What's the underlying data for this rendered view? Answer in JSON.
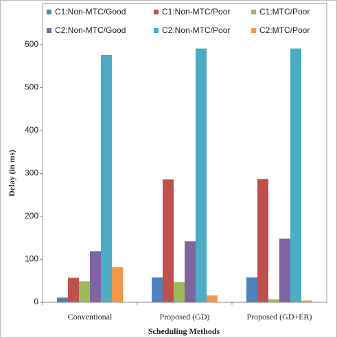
{
  "chart_data": {
    "type": "bar",
    "x_label": "Scheduling Methods",
    "y_label": "Delay (in ms)",
    "categories": [
      "Conventional",
      "Proposed (GD)",
      "Proposed (GD+ER)"
    ],
    "series": [
      {
        "name": "C1:Non-MTC/Good",
        "color": "#4f81bd",
        "values": [
          11,
          58,
          58
        ]
      },
      {
        "name": "C1:Non-MTC/Poor",
        "color": "#c0504d",
        "values": [
          57,
          286,
          287
        ]
      },
      {
        "name": "C1:MTC/Poor",
        "color": "#9bbb59",
        "values": [
          49,
          47,
          7
        ]
      },
      {
        "name": "C2:Non-MTC/Good",
        "color": "#8064a2",
        "values": [
          119,
          142,
          148
        ]
      },
      {
        "name": "C2:Non-MTC/Poor",
        "color": "#4bacc6",
        "values": [
          576,
          591,
          591
        ]
      },
      {
        "name": "C2:MTC/Poor",
        "color": "#f79646",
        "values": [
          82,
          16,
          4
        ]
      }
    ],
    "ylim": [
      0,
      600
    ],
    "yticks": [
      0,
      100,
      200,
      300,
      400,
      500,
      600
    ],
    "legend": "top",
    "grid": false
  }
}
